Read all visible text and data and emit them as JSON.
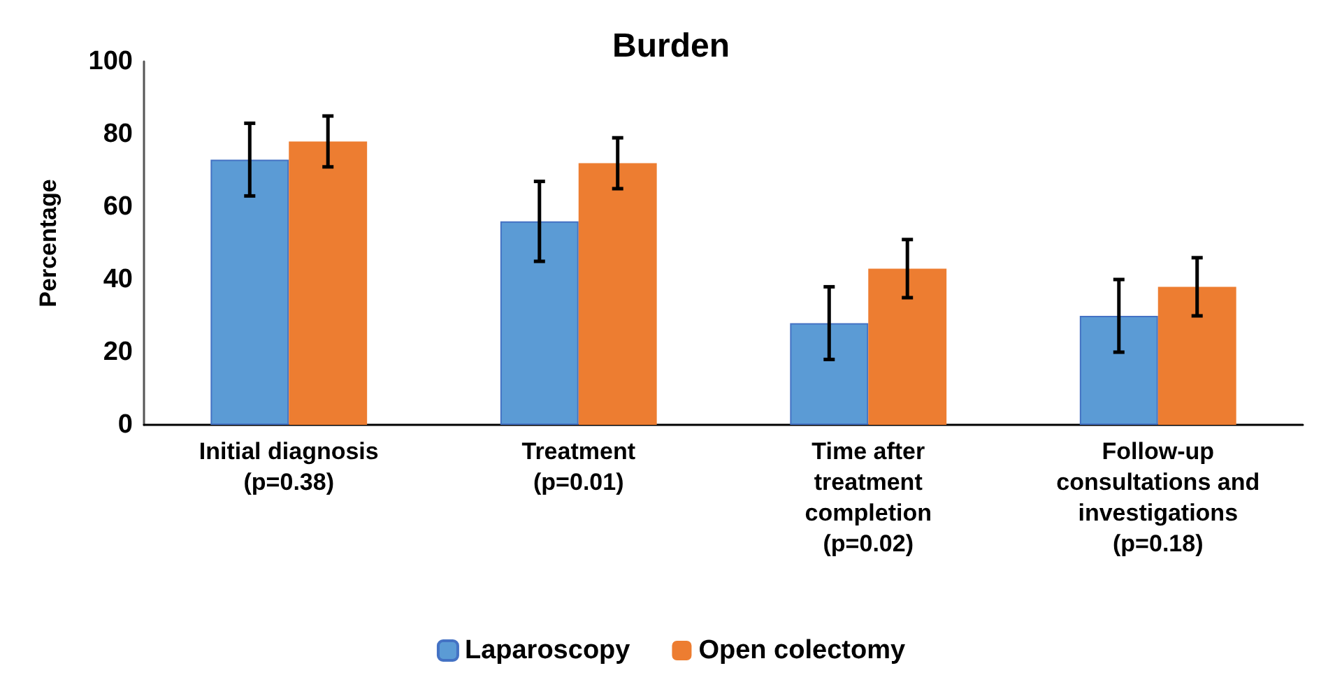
{
  "chart_data": {
    "type": "bar",
    "title": "Burden",
    "ylabel": "Percentage",
    "categories": [
      "Initial diagnosis\n(p=0.38)",
      "Treatment\n(p=0.01)",
      "Time after\ntreatment\ncompletion\n(p=0.02)",
      "Follow-up\nconsultations and\ninvestigations\n(p=0.18)"
    ],
    "series": [
      {
        "name": "Laparoscopy",
        "color": "#5b9bd5",
        "values": [
          73,
          56,
          28,
          30
        ],
        "errors": [
          10,
          11,
          10,
          10
        ]
      },
      {
        "name": "Open colectomy",
        "color": "#ed7d31",
        "values": [
          78,
          72,
          43,
          38
        ],
        "errors": [
          7,
          7,
          8,
          8
        ]
      }
    ],
    "ylim": [
      0,
      100
    ],
    "yticks": [
      0,
      20,
      40,
      60,
      80,
      100
    ],
    "grid": false,
    "legend": "bottom"
  }
}
